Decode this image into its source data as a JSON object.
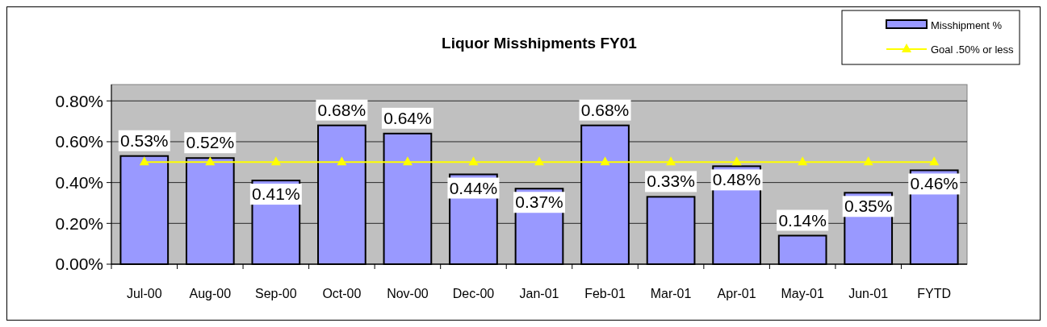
{
  "chart_data": {
    "type": "bar",
    "title": "Liquor Misshipments FY01",
    "categories": [
      "Jul-00",
      "Aug-00",
      "Sep-00",
      "Oct-00",
      "Nov-00",
      "Dec-00",
      "Jan-01",
      "Feb-01",
      "Mar-01",
      "Apr-01",
      "May-01",
      "Jun-01",
      "FYTD"
    ],
    "series": [
      {
        "name": "Misshipment %",
        "color": "#9999ff",
        "values": [
          0.53,
          0.52,
          0.41,
          0.68,
          0.64,
          0.44,
          0.37,
          0.68,
          0.33,
          0.48,
          0.14,
          0.35,
          0.46
        ],
        "value_labels": [
          "0.53%",
          "0.52%",
          "0.41%",
          "0.68%",
          "0.64%",
          "0.44%",
          "0.37%",
          "0.68%",
          "0.33%",
          "0.48%",
          "0.14%",
          "0.35%",
          "0.46%"
        ]
      },
      {
        "name": "Goal .50% or less",
        "type": "line",
        "color": "#ffff00",
        "marker": "triangle",
        "values": [
          0.5,
          0.5,
          0.5,
          0.5,
          0.5,
          0.5,
          0.5,
          0.5,
          0.5,
          0.5,
          0.5,
          0.5,
          0.5
        ]
      }
    ],
    "ylim": [
      0,
      0.88
    ],
    "yticks": [
      {
        "value": 0,
        "label": "0.00%"
      },
      {
        "value": 0.2,
        "label": "0.20%"
      },
      {
        "value": 0.4,
        "label": "0.40%"
      },
      {
        "value": 0.6,
        "label": "0.60%"
      },
      {
        "value": 0.8,
        "label": "0.80%"
      }
    ],
    "grid": "y",
    "legend": "top right"
  }
}
